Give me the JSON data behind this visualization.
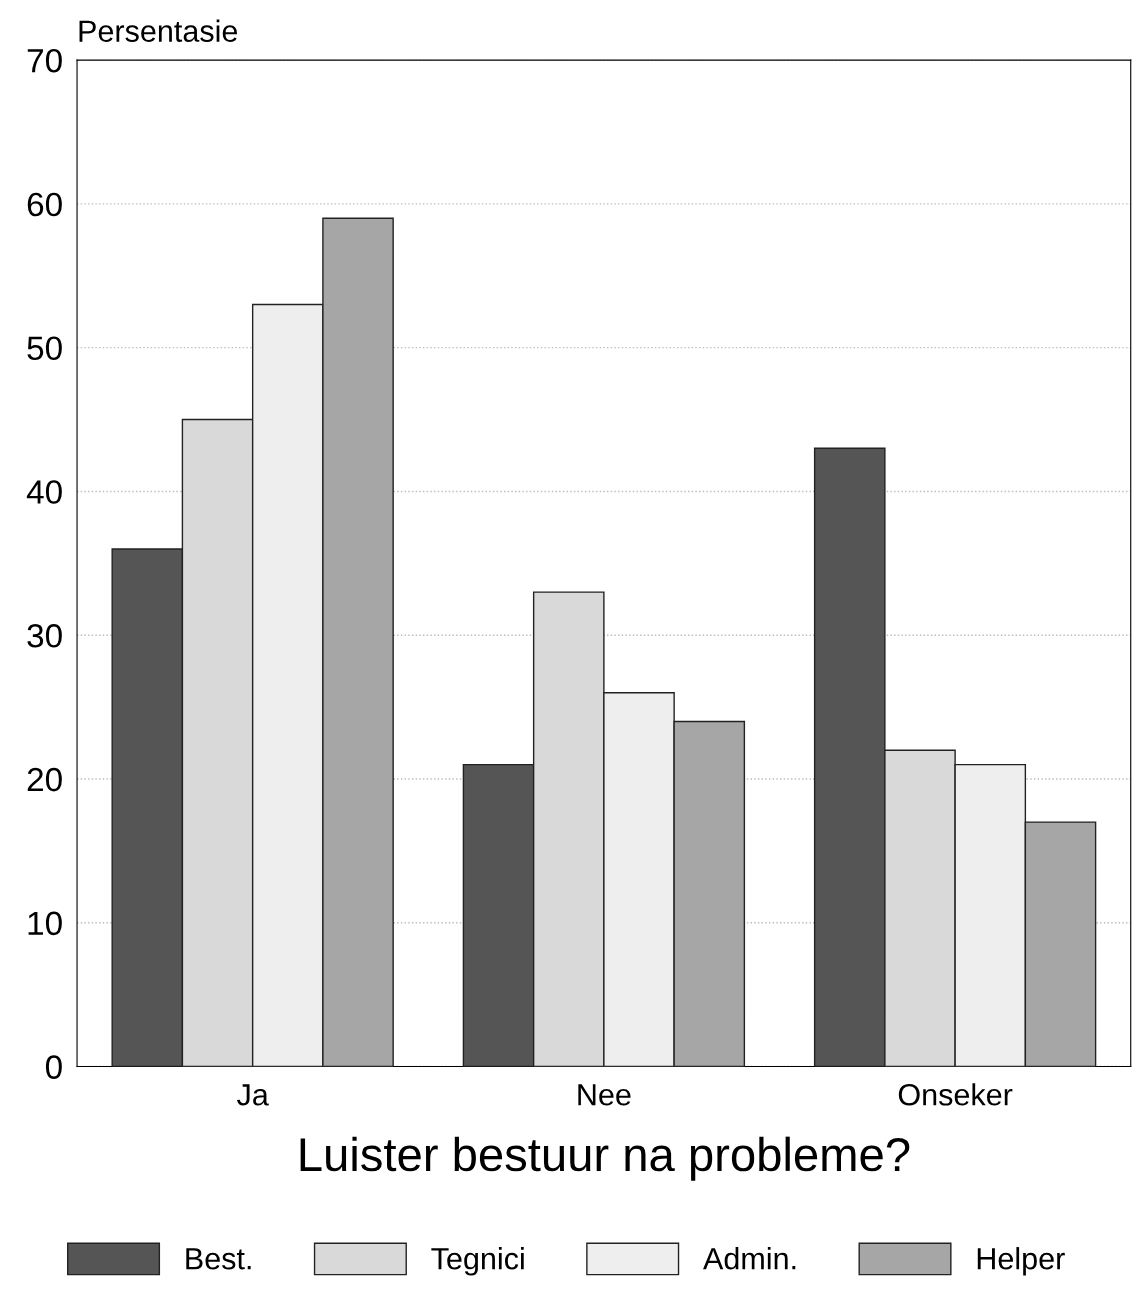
{
  "chart_data": {
    "type": "bar",
    "xlabel": "Luister bestuur na probleme?",
    "ylabel": "Persentasie",
    "categories": [
      "Ja",
      "Nee",
      "Onseker"
    ],
    "series": [
      {
        "name": "Best.",
        "color": "#555555",
        "values": [
          36,
          21,
          43
        ]
      },
      {
        "name": "Tegnici",
        "color": "#d9d9d9",
        "values": [
          45,
          33,
          22
        ]
      },
      {
        "name": "Admin.",
        "color": "#eeeeee",
        "values": [
          53,
          26,
          21
        ]
      },
      {
        "name": "Helper",
        "color": "#a6a6a6",
        "values": [
          59,
          24,
          17
        ]
      }
    ],
    "ylim": [
      0,
      70
    ],
    "yticks": [
      0,
      10,
      20,
      30,
      40,
      50,
      60,
      70
    ],
    "grid": "y",
    "legend": "bottom"
  }
}
